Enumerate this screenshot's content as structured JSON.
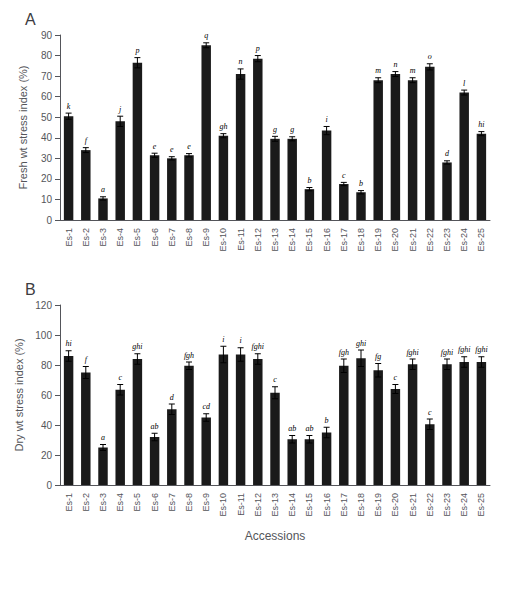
{
  "chart_data": [
    {
      "type": "bar",
      "title": "A",
      "categories": [
        "Es-1",
        "Es-2",
        "Es-3",
        "Es-4",
        "Es-5",
        "Es-6",
        "Es-7",
        "Es-8",
        "Es-9",
        "Es-10",
        "Es-11",
        "Es-12",
        "Es-13",
        "Es-14",
        "Es-15",
        "Es-16",
        "Es-17",
        "Es-18",
        "Es-19",
        "Es-20",
        "Es-21",
        "Es-22",
        "Es-23",
        "Es-24",
        "Es-25"
      ],
      "values": [
        50.5,
        34.0,
        10.5,
        48.0,
        76.5,
        31.5,
        30.0,
        31.5,
        85.0,
        41.0,
        71.0,
        78.5,
        39.5,
        39.5,
        15.0,
        43.5,
        17.5,
        13.5,
        68.0,
        71.0,
        68.0,
        74.5,
        28.0,
        62.0,
        42.0
      ],
      "errors": [
        1.5,
        1.2,
        0.8,
        2.5,
        2.5,
        1.0,
        0.8,
        0.8,
        1.2,
        1.0,
        2.5,
        1.5,
        1.2,
        1.0,
        0.8,
        2.0,
        0.8,
        0.8,
        1.2,
        1.2,
        1.2,
        1.5,
        0.8,
        1.2,
        1.0
      ],
      "annotations": [
        "k",
        "f",
        "a",
        "j",
        "p",
        "e",
        "e",
        "e",
        "q",
        "gh",
        "n",
        "p",
        "g",
        "g",
        "b",
        "i",
        "c",
        "b",
        "m",
        "n",
        "m",
        "o",
        "d",
        "l",
        "hi"
      ],
      "color": "#1a1a1a",
      "ylabel": "Fresh wt stress index (%)",
      "ylim": [
        0,
        90
      ],
      "yticks": [
        0,
        10,
        20,
        30,
        40,
        50,
        60,
        70,
        80,
        90
      ],
      "grid": false
    },
    {
      "type": "bar",
      "title": "B",
      "categories": [
        "Es-1",
        "Es-2",
        "Es-3",
        "Es-4",
        "Es-5",
        "Es-6",
        "Es-7",
        "Es-8",
        "Es-9",
        "Es-10",
        "Es-11",
        "Es-12",
        "Es-13",
        "Es-14",
        "Es-15",
        "Es-16",
        "Es-17",
        "Es-18",
        "Es-19",
        "Es-20",
        "Es-21",
        "Es-22",
        "Es-23",
        "Es-24",
        "Es-25"
      ],
      "values": [
        86.0,
        75.0,
        25.0,
        63.5,
        84.0,
        32.0,
        50.5,
        79.5,
        45.0,
        87.0,
        87.0,
        84.0,
        61.5,
        30.5,
        30.5,
        35.0,
        79.5,
        84.5,
        76.5,
        64.0,
        80.5,
        40.5,
        80.5,
        82.0,
        82.0
      ],
      "errors": [
        3.5,
        4.0,
        2.0,
        3.5,
        3.5,
        2.5,
        3.5,
        2.5,
        2.5,
        5.5,
        4.5,
        3.5,
        4.0,
        2.5,
        2.5,
        3.5,
        4.5,
        5.5,
        4.5,
        3.0,
        3.5,
        3.5,
        3.5,
        3.5,
        3.5
      ],
      "annotations": [
        "hi",
        "f",
        "a",
        "c",
        "ghi",
        "ab",
        "d",
        "fgh",
        "cd",
        "i",
        "i",
        "fghi",
        "c",
        "ab",
        "ab",
        "b",
        "fgh",
        "ghi",
        "fg",
        "c",
        "fghi",
        "c",
        "fghi",
        "fghi",
        "fghi"
      ],
      "color": "#1a1a1a",
      "ylabel": "Dry wt stress index (%)",
      "xlabel": "Accessions",
      "ylim": [
        0,
        120
      ],
      "yticks": [
        0,
        20,
        40,
        60,
        80,
        100,
        120
      ],
      "grid": false
    }
  ]
}
